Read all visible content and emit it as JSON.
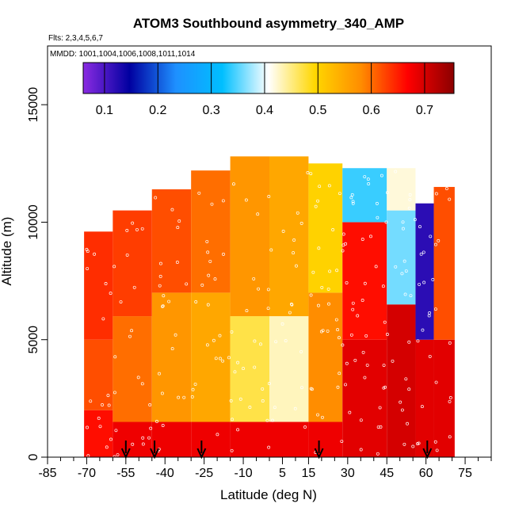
{
  "chart_data": {
    "type": "heatmap",
    "title": "ATOM3 Southbound asymmetry_340_AMP",
    "flights_label": "Flts: 2,3,4,5,6,7",
    "dates_label": "MMDD: 1001,1004,1006,1008,1011,1014",
    "xlabel": "Latitude (deg N)",
    "ylabel": "Altitude (m)",
    "xlim": [
      -85,
      85
    ],
    "ylim": [
      0,
      17500
    ],
    "x_ticks": [
      -85,
      -70,
      -55,
      -40,
      -25,
      -10,
      5,
      15,
      30,
      45,
      60,
      75
    ],
    "x_tick_labels": [
      "-85",
      "-70",
      "-55",
      "-40",
      "-25",
      "-10",
      "5",
      "15",
      "30",
      "45",
      "60",
      "75"
    ],
    "x_minor_ticks": [
      -80,
      -75,
      -65,
      -60,
      -50,
      -45,
      -35,
      -30,
      -20,
      -15,
      -5,
      0,
      10,
      20,
      25,
      35,
      40,
      50,
      55,
      65,
      70,
      80,
      85
    ],
    "y_ticks": [
      0,
      5000,
      10000,
      15000
    ],
    "y_tick_labels": [
      "0",
      "5000",
      "10000",
      "15000"
    ],
    "colorbar": {
      "range": [
        0.06,
        0.755
      ],
      "ticks": [
        0.1,
        0.2,
        0.3,
        0.4,
        0.5,
        0.6,
        0.7
      ],
      "tick_labels": [
        "0.1",
        "0.2",
        "0.3",
        "0.4",
        "0.5",
        "0.6",
        "0.7"
      ],
      "colors": [
        "#8a2be2",
        "#0000a0",
        "#1e90ff",
        "#00bfff",
        "#ffffff",
        "#ffd700",
        "#ff8c00",
        "#ff0000",
        "#8b0000"
      ]
    },
    "flight_markers_lat": [
      -55,
      -44,
      -26,
      19,
      60.5
    ],
    "field": {
      "description": "Approximate gridded asymmetry_340_AMP values by latitude band and altitude",
      "lat_bands": [
        {
          "lat": [
            -71,
            -60
          ],
          "alt_top": 9600,
          "levels": [
            [
              0,
              2000,
              0.66
            ],
            [
              2000,
              5000,
              0.62
            ],
            [
              5000,
              9600,
              0.64
            ]
          ]
        },
        {
          "lat": [
            -60,
            -45
          ],
          "alt_top": 10500,
          "levels": [
            [
              0,
              1500,
              0.68
            ],
            [
              1500,
              6000,
              0.6
            ],
            [
              6000,
              10500,
              0.63
            ]
          ]
        },
        {
          "lat": [
            -45,
            -30
          ],
          "alt_top": 11400,
          "levels": [
            [
              0,
              1500,
              0.68
            ],
            [
              1500,
              7000,
              0.57
            ],
            [
              7000,
              11400,
              0.62
            ]
          ]
        },
        {
          "lat": [
            -30,
            -15
          ],
          "alt_top": 12200,
          "levels": [
            [
              0,
              1500,
              0.68
            ],
            [
              1500,
              7000,
              0.55
            ],
            [
              7000,
              12200,
              0.6
            ]
          ]
        },
        {
          "lat": [
            -15,
            0
          ],
          "alt_top": 12800,
          "levels": [
            [
              0,
              1500,
              0.68
            ],
            [
              1500,
              6000,
              0.47
            ],
            [
              6000,
              12800,
              0.57
            ]
          ]
        },
        {
          "lat": [
            0,
            15
          ],
          "alt_top": 12800,
          "levels": [
            [
              0,
              1500,
              0.68
            ],
            [
              1500,
              6000,
              0.43
            ],
            [
              6000,
              12800,
              0.55
            ]
          ]
        },
        {
          "lat": [
            15,
            28
          ],
          "alt_top": 12500,
          "levels": [
            [
              0,
              1500,
              0.68
            ],
            [
              1500,
              7000,
              0.58
            ],
            [
              7000,
              12500,
              0.5
            ]
          ]
        },
        {
          "lat": [
            28,
            45
          ],
          "alt_top": 12300,
          "levels": [
            [
              0,
              5000,
              0.69
            ],
            [
              5000,
              10000,
              0.66
            ],
            [
              10000,
              12300,
              0.34
            ]
          ]
        },
        {
          "lat": [
            45,
            56
          ],
          "alt_top": 12300,
          "levels": [
            [
              0,
              6500,
              0.7
            ],
            [
              6500,
              10500,
              0.36
            ],
            [
              10500,
              12300,
              0.42
            ]
          ]
        },
        {
          "lat": [
            56,
            63
          ],
          "alt_top": 10800,
          "levels": [
            [
              0,
              5000,
              0.69
            ],
            [
              5000,
              10800,
              0.12
            ]
          ]
        },
        {
          "lat": [
            63,
            71
          ],
          "alt_top": 11500,
          "levels": [
            [
              0,
              5000,
              0.69
            ],
            [
              5000,
              11500,
              0.62
            ]
          ]
        }
      ]
    }
  }
}
